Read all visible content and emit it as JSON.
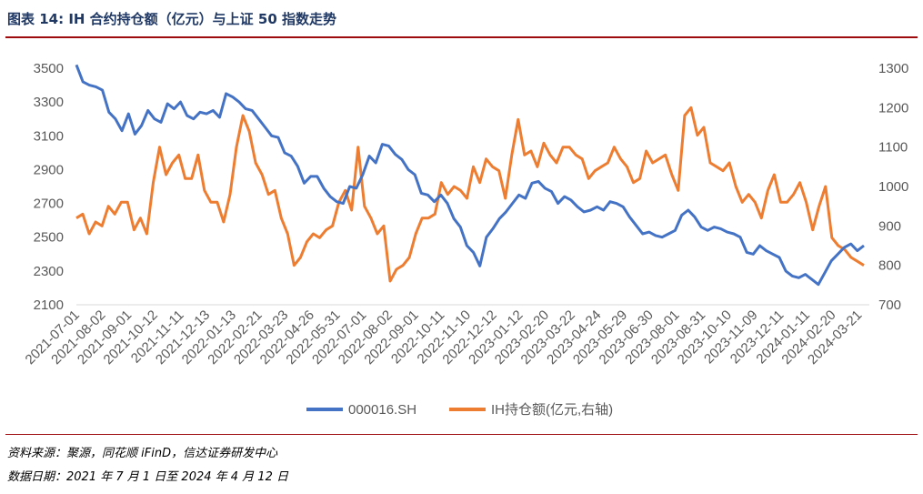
{
  "title": "图表 14: IH 合约持仓额（亿元）与上证 50 指数走势",
  "source": "资料来源：聚源，同花顺 iFinD，信达证券研发中心",
  "date_note": "数据日期：2021 年 7 月 1 日至 2024 年 4 月 12 日",
  "colors": {
    "index": "#4472c4",
    "ih": "#ed7d31",
    "title_rule": "#9e0b0f"
  },
  "chart_data": {
    "type": "line",
    "x_tick_labels": [
      "2021-07-01",
      "2021-08-02",
      "2021-09-01",
      "2021-10-12",
      "2021-11-11",
      "2021-12-13",
      "2022-01-13",
      "2022-02-21",
      "2022-03-23",
      "2022-04-26",
      "2022-05-31",
      "2022-07-01",
      "2022-08-02",
      "2022-09-01",
      "2022-10-11",
      "2022-11-10",
      "2022-12-12",
      "2023-01-12",
      "2023-02-20",
      "2023-03-22",
      "2023-04-24",
      "2023-05-29",
      "2023-06-30",
      "2023-08-01",
      "2023-08-31",
      "2023-10-10",
      "2023-11-09",
      "2023-12-11",
      "2024-01-11",
      "2024-02-20",
      "2024-03-21"
    ],
    "y_left": {
      "min": 2100,
      "max": 3500,
      "ticks": [
        2100,
        2300,
        2500,
        2700,
        2900,
        3100,
        3300,
        3500
      ]
    },
    "y_right": {
      "min": 700,
      "max": 1300,
      "ticks": [
        700,
        800,
        900,
        1000,
        1100,
        1200,
        1300
      ]
    },
    "grid": false,
    "legend_position": "bottom",
    "series": [
      {
        "name": "000016.SH",
        "axis": "left",
        "values": [
          3520,
          3420,
          3400,
          3390,
          3370,
          3240,
          3200,
          3130,
          3230,
          3110,
          3160,
          3250,
          3200,
          3180,
          3290,
          3260,
          3300,
          3220,
          3200,
          3240,
          3230,
          3250,
          3210,
          3350,
          3330,
          3300,
          3260,
          3250,
          3200,
          3150,
          3100,
          3090,
          3000,
          2980,
          2920,
          2820,
          2860,
          2860,
          2790,
          2740,
          2710,
          2700,
          2800,
          2790,
          2870,
          2980,
          2940,
          3050,
          3040,
          2990,
          2960,
          2900,
          2870,
          2760,
          2750,
          2710,
          2750,
          2700,
          2610,
          2560,
          2450,
          2410,
          2330,
          2500,
          2550,
          2610,
          2650,
          2700,
          2750,
          2730,
          2820,
          2830,
          2790,
          2770,
          2700,
          2740,
          2720,
          2680,
          2650,
          2660,
          2680,
          2660,
          2710,
          2700,
          2680,
          2620,
          2570,
          2520,
          2530,
          2510,
          2500,
          2520,
          2540,
          2630,
          2660,
          2620,
          2560,
          2540,
          2560,
          2550,
          2530,
          2520,
          2500,
          2410,
          2400,
          2450,
          2420,
          2400,
          2380,
          2300,
          2270,
          2260,
          2280,
          2250,
          2220,
          2290,
          2360,
          2400,
          2440,
          2460,
          2420,
          2450
        ]
      },
      {
        "name": "IH持仓额(亿元,右轴)",
        "axis": "right",
        "values": [
          920,
          930,
          880,
          910,
          900,
          950,
          930,
          960,
          960,
          890,
          920,
          880,
          1010,
          1100,
          1030,
          1060,
          1080,
          1020,
          1020,
          1080,
          990,
          960,
          960,
          910,
          980,
          1100,
          1180,
          1140,
          1060,
          1030,
          980,
          990,
          920,
          880,
          800,
          820,
          860,
          880,
          870,
          890,
          900,
          960,
          990,
          940,
          1100,
          950,
          920,
          880,
          900,
          760,
          790,
          800,
          820,
          880,
          920,
          920,
          930,
          1010,
          980,
          1000,
          990,
          970,
          1050,
          1010,
          1070,
          1050,
          1040,
          970,
          1080,
          1170,
          1080,
          1090,
          1050,
          1110,
          1080,
          1060,
          1100,
          1100,
          1080,
          1070,
          1020,
          1040,
          1050,
          1060,
          1100,
          1070,
          1050,
          1010,
          1020,
          1090,
          1060,
          1070,
          1080,
          1030,
          990,
          1180,
          1200,
          1130,
          1150,
          1060,
          1050,
          1040,
          1060,
          1000,
          960,
          980,
          960,
          920,
          990,
          1030,
          960,
          960,
          980,
          1010,
          960,
          890,
          950,
          1000,
          870,
          850,
          840,
          820,
          810,
          800
        ]
      }
    ]
  },
  "legend": [
    {
      "label": "000016.SH"
    },
    {
      "label": "IH持仓额(亿元,右轴)"
    }
  ]
}
